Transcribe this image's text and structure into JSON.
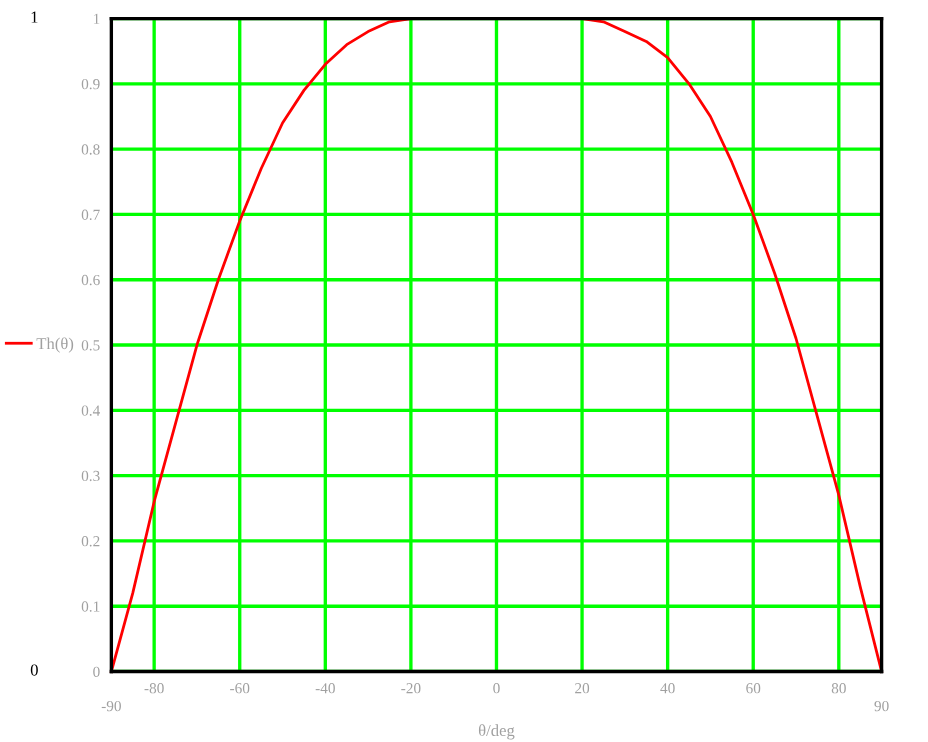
{
  "chart_data": {
    "type": "line",
    "x": [
      -90,
      -85,
      -80,
      -75,
      -70,
      -65,
      -60,
      -55,
      -50,
      -45,
      -40,
      -35,
      -30,
      -25,
      -20,
      -15,
      -10,
      -5,
      0,
      5,
      10,
      15,
      20,
      25,
      30,
      35,
      40,
      45,
      50,
      55,
      60,
      65,
      70,
      75,
      80,
      85,
      90
    ],
    "series": [
      {
        "name": "Th(θ)",
        "color": "#ff0000",
        "values": [
          0,
          0.12,
          0.26,
          0.38,
          0.5,
          0.6,
          0.69,
          0.77,
          0.84,
          0.89,
          0.93,
          0.96,
          0.98,
          0.995,
          1,
          null,
          null,
          null,
          null,
          null,
          null,
          null,
          1,
          0.995,
          0.98,
          0.965,
          0.94,
          0.9,
          0.85,
          0.78,
          0.7,
          0.61,
          0.51,
          0.39,
          0.27,
          0.13,
          0
        ]
      }
    ],
    "xlabel": "θ/deg",
    "xlim": [
      -90,
      90
    ],
    "xticks": [
      -80,
      -60,
      -40,
      -20,
      0,
      20,
      40,
      60,
      80
    ],
    "ylim": [
      0,
      1
    ],
    "yticks": [
      0,
      0.1,
      0.2,
      0.3,
      0.4,
      0.5,
      0.6,
      0.7,
      0.8,
      0.9,
      1
    ],
    "annotations": [
      "1",
      "0",
      "-90",
      "90"
    ],
    "grid": true,
    "legend": "left",
    "marker": "none",
    "line_style": "solid"
  }
}
